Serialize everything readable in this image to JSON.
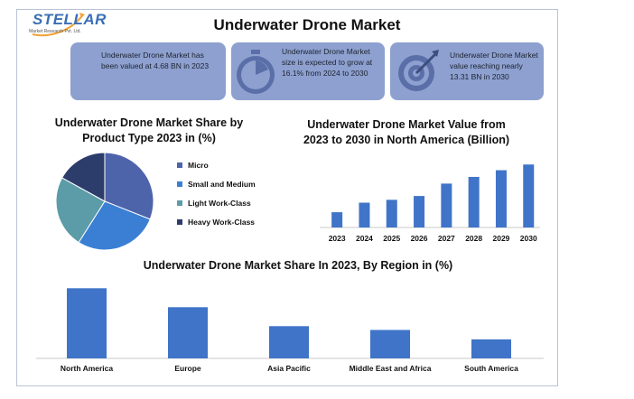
{
  "header": {
    "logo_text": "STELLAR",
    "logo_subtitle": "Market Research Pvt. Ltd.",
    "title": "Underwater Drone Market"
  },
  "cards": [
    {
      "text": "Underwater Drone Market has been valued at 4.68 BN in 2023",
      "icon": "none"
    },
    {
      "text": "Underwater Drone Market size is expected to grow at 16.1% from 2024 to 2030",
      "icon": "stopwatch-icon"
    },
    {
      "text": "Underwater Drone Market value reaching nearly 13.31 BN in 2030",
      "icon": "target-icon"
    }
  ],
  "colors": {
    "card_bg": "#8da0cf",
    "bar": "#3f74c8",
    "micro": "#4d63aa",
    "small_medium": "#3a7fd4",
    "light_work": "#5c9ca8",
    "heavy_work": "#2c3c6b"
  },
  "chart_data": [
    {
      "type": "pie",
      "title": "Underwater Drone Market Share by Product Type 2023 in (%)",
      "categories": [
        "Micro",
        "Small and Medium",
        "Light Work-Class",
        "Heavy Work-Class"
      ],
      "values": [
        31,
        28,
        24,
        17
      ],
      "legend": "right"
    },
    {
      "type": "bar",
      "title": "Underwater Drone Market Value from 2023 to 2030 in North America (Billion)",
      "categories": [
        "2023",
        "2024",
        "2025",
        "2026",
        "2027",
        "2028",
        "2029",
        "2030"
      ],
      "values": [
        1.6,
        2.6,
        2.9,
        3.3,
        4.6,
        5.3,
        6.0,
        6.6
      ],
      "ylim": [
        0,
        7
      ],
      "grid": false
    },
    {
      "type": "bar",
      "title": "Underwater Drone Market Share In 2023, By Region in (%)",
      "categories": [
        "North America",
        "Europe",
        "Asia Pacific",
        "Middle East and Africa",
        "South America"
      ],
      "values": [
        37,
        27,
        17,
        15,
        10
      ],
      "ylim": [
        0,
        40
      ],
      "grid": false
    }
  ]
}
